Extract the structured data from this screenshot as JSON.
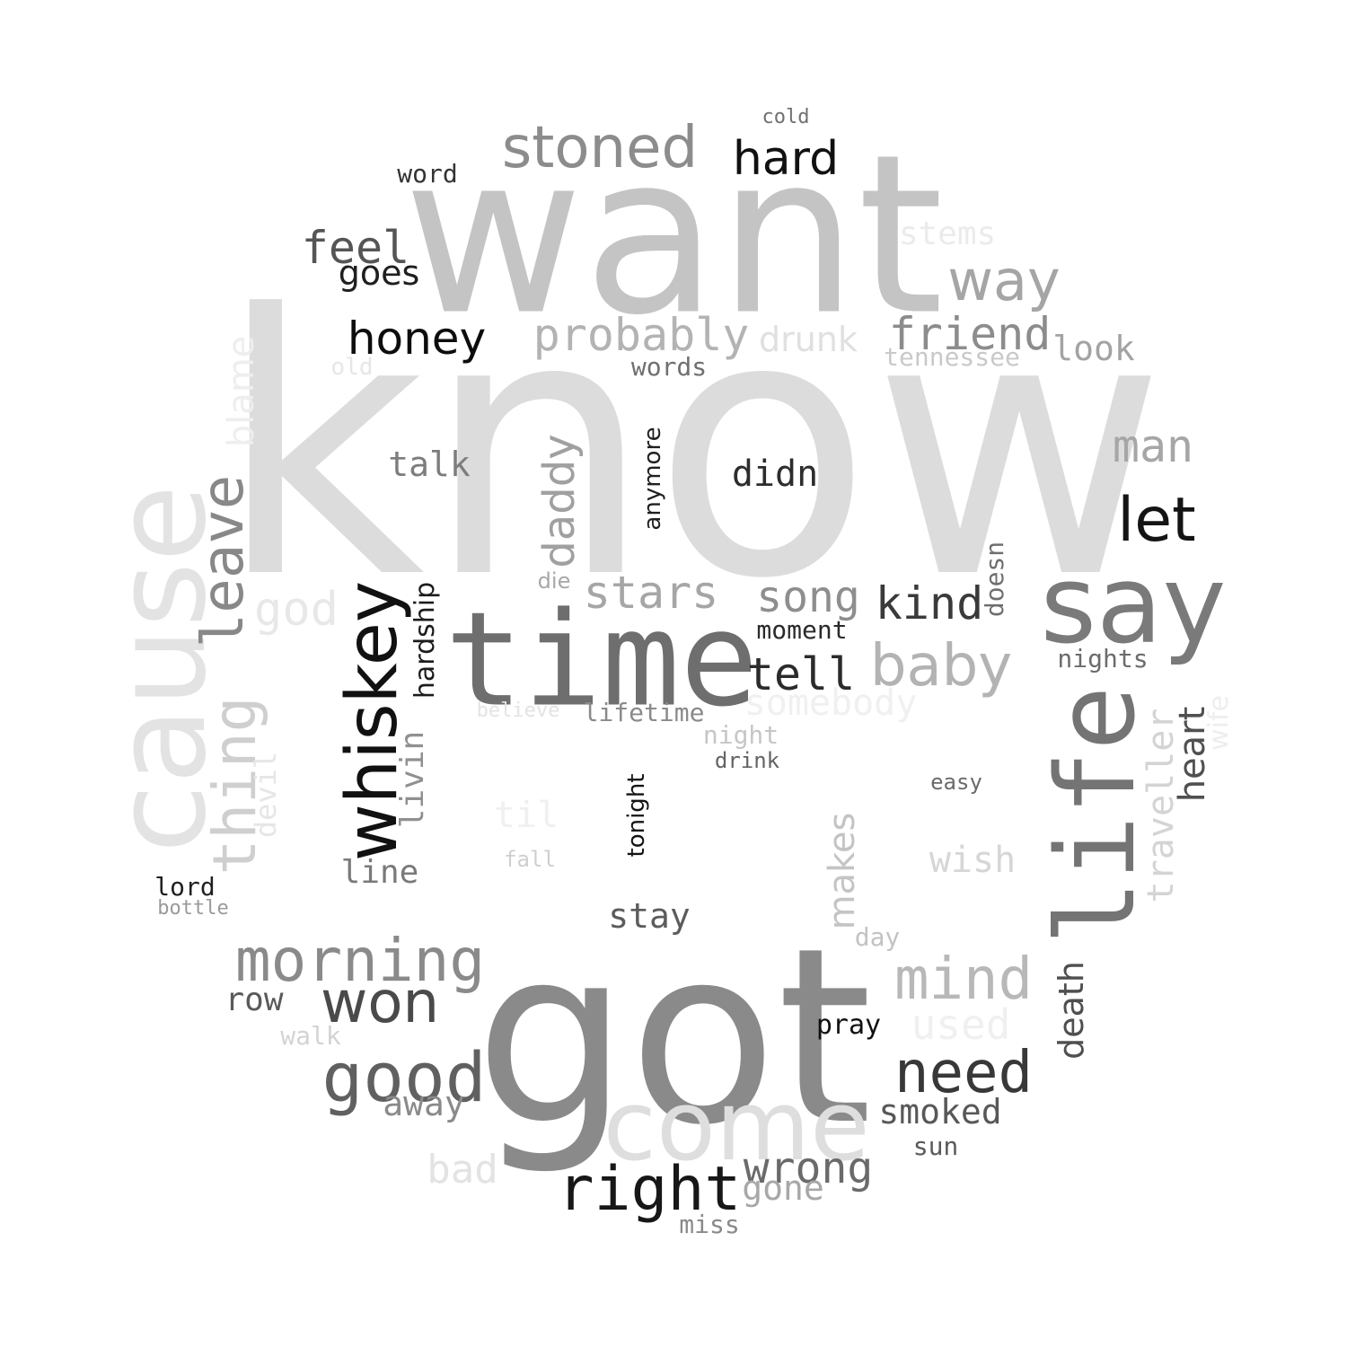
{
  "word_cloud": {
    "words": [
      {
        "text": "know",
        "color": "#dcdcdc"
      },
      {
        "text": "want",
        "color": "#c4c4c4"
      },
      {
        "text": "got",
        "color": "#8a8a8a"
      },
      {
        "text": "time",
        "color": "#6e6e6e"
      },
      {
        "text": "cause",
        "color": "#e3e3e3"
      },
      {
        "text": "say",
        "color": "#7a7a7a"
      },
      {
        "text": "life",
        "color": "#747474"
      },
      {
        "text": "come",
        "color": "#dedede"
      },
      {
        "text": "stoned",
        "color": "#8c8c8c"
      },
      {
        "text": "hard",
        "color": "#111111"
      },
      {
        "text": "cold",
        "color": "#707070"
      },
      {
        "text": "word",
        "color": "#333333"
      },
      {
        "text": "stems",
        "color": "#ebebeb"
      },
      {
        "text": "feel",
        "color": "#555555"
      },
      {
        "text": "goes",
        "color": "#1f1f1f"
      },
      {
        "text": "way",
        "color": "#a5a5a5"
      },
      {
        "text": "honey",
        "color": "#0d0d0d"
      },
      {
        "text": "probably",
        "color": "#b3b3b3"
      },
      {
        "text": "drunk",
        "color": "#e0e0e0"
      },
      {
        "text": "friend",
        "color": "#8c8c8c"
      },
      {
        "text": "look",
        "color": "#a3a3a3"
      },
      {
        "text": "tennessee",
        "color": "#c9c9c9"
      },
      {
        "text": "old",
        "color": "#e6e6e6"
      },
      {
        "text": "words",
        "color": "#6f6f6f"
      },
      {
        "text": "blame",
        "color": "#eeeeee"
      },
      {
        "text": "talk",
        "color": "#7d7d7d"
      },
      {
        "text": "man",
        "color": "#a6a6a6"
      },
      {
        "text": "didn",
        "color": "#2d2d2d"
      },
      {
        "text": "anymore",
        "color": "#1f1f1f"
      },
      {
        "text": "daddy",
        "color": "#a0a0a0"
      },
      {
        "text": "leave",
        "color": "#888888"
      },
      {
        "text": "let",
        "color": "#141414"
      },
      {
        "text": "god",
        "color": "#e8e8e8"
      },
      {
        "text": "die",
        "color": "#a8a8a8"
      },
      {
        "text": "stars",
        "color": "#a6a6a6"
      },
      {
        "text": "song",
        "color": "#8e8e8e"
      },
      {
        "text": "kind",
        "color": "#3a3a3a"
      },
      {
        "text": "doesn",
        "color": "#6f6f6f"
      },
      {
        "text": "moment",
        "color": "#2a2a2a"
      },
      {
        "text": "tell",
        "color": "#2b2b2b"
      },
      {
        "text": "baby",
        "color": "#b3b3b3"
      },
      {
        "text": "nights",
        "color": "#6c6c6c"
      },
      {
        "text": "whiskey",
        "color": "#111111"
      },
      {
        "text": "hardship",
        "color": "#1c1c1c"
      },
      {
        "text": "thing",
        "color": "#cfcfcf"
      },
      {
        "text": "somebody",
        "color": "#f0f0f0"
      },
      {
        "text": "believe",
        "color": "#e3e3e3"
      },
      {
        "text": "lifetime",
        "color": "#8a8a8a"
      },
      {
        "text": "heart",
        "color": "#505050"
      },
      {
        "text": "wife",
        "color": "#eeeeee"
      },
      {
        "text": "traveller",
        "color": "#d4d4d4"
      },
      {
        "text": "livin",
        "color": "#909090"
      },
      {
        "text": "devil",
        "color": "#e6e6e6"
      },
      {
        "text": "night",
        "color": "#c6c6c6"
      },
      {
        "text": "drink",
        "color": "#636363"
      },
      {
        "text": "tonight",
        "color": "#131313"
      },
      {
        "text": "easy",
        "color": "#6a6a6a"
      },
      {
        "text": "til",
        "color": "#f0f0f0"
      },
      {
        "text": "makes",
        "color": "#c4c4c4"
      },
      {
        "text": "wish",
        "color": "#d6d6d6"
      },
      {
        "text": "fall",
        "color": "#cfcfcf"
      },
      {
        "text": "line",
        "color": "#7a7a7a"
      },
      {
        "text": "lord",
        "color": "#1f1f1f"
      },
      {
        "text": "bottle",
        "color": "#9a9a9a"
      },
      {
        "text": "stay",
        "color": "#5c5c5c"
      },
      {
        "text": "day",
        "color": "#c3c3c3"
      },
      {
        "text": "morning",
        "color": "#8a8a8a"
      },
      {
        "text": "death",
        "color": "#4f4f4f"
      },
      {
        "text": "mind",
        "color": "#b8b8b8"
      },
      {
        "text": "won",
        "color": "#4a4a4a"
      },
      {
        "text": "row",
        "color": "#5a5a5a"
      },
      {
        "text": "used",
        "color": "#f0f0f0"
      },
      {
        "text": "walk",
        "color": "#d3d3d3"
      },
      {
        "text": "pray",
        "color": "#111111"
      },
      {
        "text": "good",
        "color": "#606060"
      },
      {
        "text": "need",
        "color": "#383838"
      },
      {
        "text": "away",
        "color": "#8a8a8a"
      },
      {
        "text": "smoked",
        "color": "#585858"
      },
      {
        "text": "sun",
        "color": "#5a5a5a"
      },
      {
        "text": "bad",
        "color": "#e3e3e3"
      },
      {
        "text": "right",
        "color": "#171717"
      },
      {
        "text": "wrong",
        "color": "#6a6a6a"
      },
      {
        "text": "gone",
        "color": "#a8a8a8"
      },
      {
        "text": "miss",
        "color": "#8a8a8a"
      }
    ]
  }
}
